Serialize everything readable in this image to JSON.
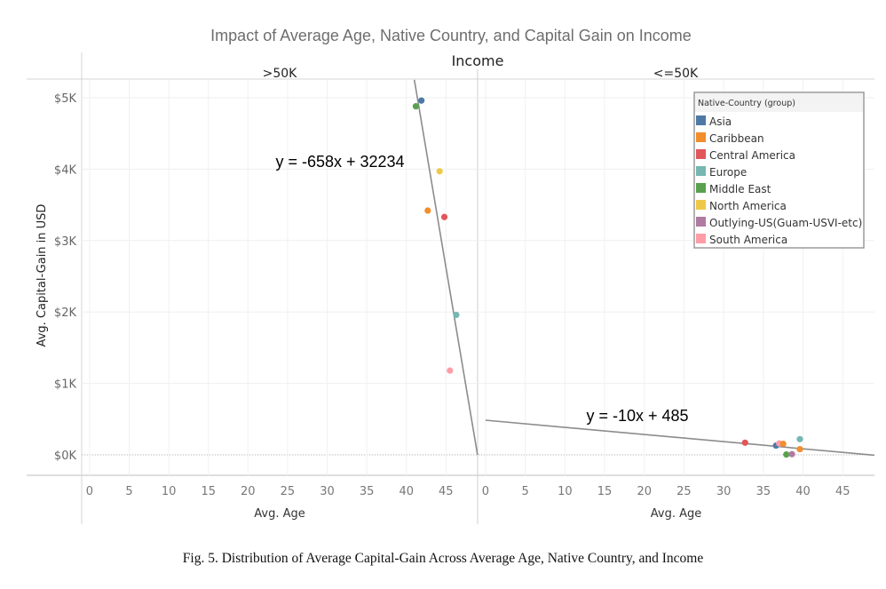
{
  "chart_data": {
    "type": "scatter",
    "title": "Impact of Average Age, Native Country, and Capital Gain on Income",
    "column_header": "Income",
    "panels": [
      {
        "name": ">50K",
        "x_ticks": [
          "0",
          "5",
          "10",
          "15",
          "20",
          "25",
          "30",
          "35",
          "40",
          "45"
        ],
        "trend_label": "y = -658x + 32234",
        "trend_line": {
          "slope": -658,
          "intercept": 32234
        },
        "points": [
          {
            "series": "Asia",
            "x": 41.9,
            "y": 4960
          },
          {
            "series": "Middle East",
            "x": 41.2,
            "y": 4880
          },
          {
            "series": "North America",
            "x": 44.2,
            "y": 3970
          },
          {
            "series": "Caribbean",
            "x": 42.7,
            "y": 3420
          },
          {
            "series": "Central America",
            "x": 44.8,
            "y": 3330
          },
          {
            "series": "Europe",
            "x": 46.3,
            "y": 1960
          },
          {
            "series": "South America",
            "x": 45.5,
            "y": 1180
          }
        ]
      },
      {
        "name": "<=50K",
        "x_ticks": [
          "0",
          "5",
          "10",
          "15",
          "20",
          "25",
          "30",
          "35",
          "40",
          "45"
        ],
        "trend_label": "y = -10x + 485",
        "trend_line": {
          "slope": -10,
          "intercept": 485
        },
        "points": [
          {
            "series": "Central America",
            "x": 32.7,
            "y": 170
          },
          {
            "series": "Asia",
            "x": 36.6,
            "y": 130
          },
          {
            "series": "South America",
            "x": 37.0,
            "y": 160
          },
          {
            "series": "Caribbean",
            "x": 37.5,
            "y": 155
          },
          {
            "series": "Middle East",
            "x": 37.9,
            "y": 5
          },
          {
            "series": "Outlying-US(Guam-USVI-etc)",
            "x": 38.6,
            "y": 10
          },
          {
            "series": "Europe",
            "x": 39.6,
            "y": 220
          },
          {
            "series": "Caribbean",
            "x": 39.6,
            "y": 80
          }
        ]
      }
    ],
    "xlabel": "Avg. Age",
    "ylabel": "Avg. Capital-Gain in USD",
    "xlim": [
      -1,
      49
    ],
    "ylim": [
      -280,
      5250
    ],
    "y_ticks": [
      {
        "value": 0,
        "label": "$0K"
      },
      {
        "value": 1000,
        "label": "$1K"
      },
      {
        "value": 2000,
        "label": "$2K"
      },
      {
        "value": 3000,
        "label": "$3K"
      },
      {
        "value": 4000,
        "label": "$4K"
      },
      {
        "value": 5000,
        "label": "$5K"
      }
    ],
    "grid": true,
    "legend": {
      "title": "Native-Country (group)",
      "position": "top-right",
      "items": [
        {
          "name": "Asia",
          "color": "#4e79a7"
        },
        {
          "name": "Caribbean",
          "color": "#f28e2b"
        },
        {
          "name": "Central America",
          "color": "#e15759"
        },
        {
          "name": "Europe",
          "color": "#76b7b2"
        },
        {
          "name": "Middle East",
          "color": "#59a14f"
        },
        {
          "name": "North America",
          "color": "#edc948"
        },
        {
          "name": "Outlying-US(Guam-USVI-etc)",
          "color": "#b07aa1"
        },
        {
          "name": "South America",
          "color": "#ff9da7"
        }
      ]
    }
  },
  "caption": "Fig. 5.  Distribution of Average Capital-Gain Across Average Age, Native Country, and Income"
}
